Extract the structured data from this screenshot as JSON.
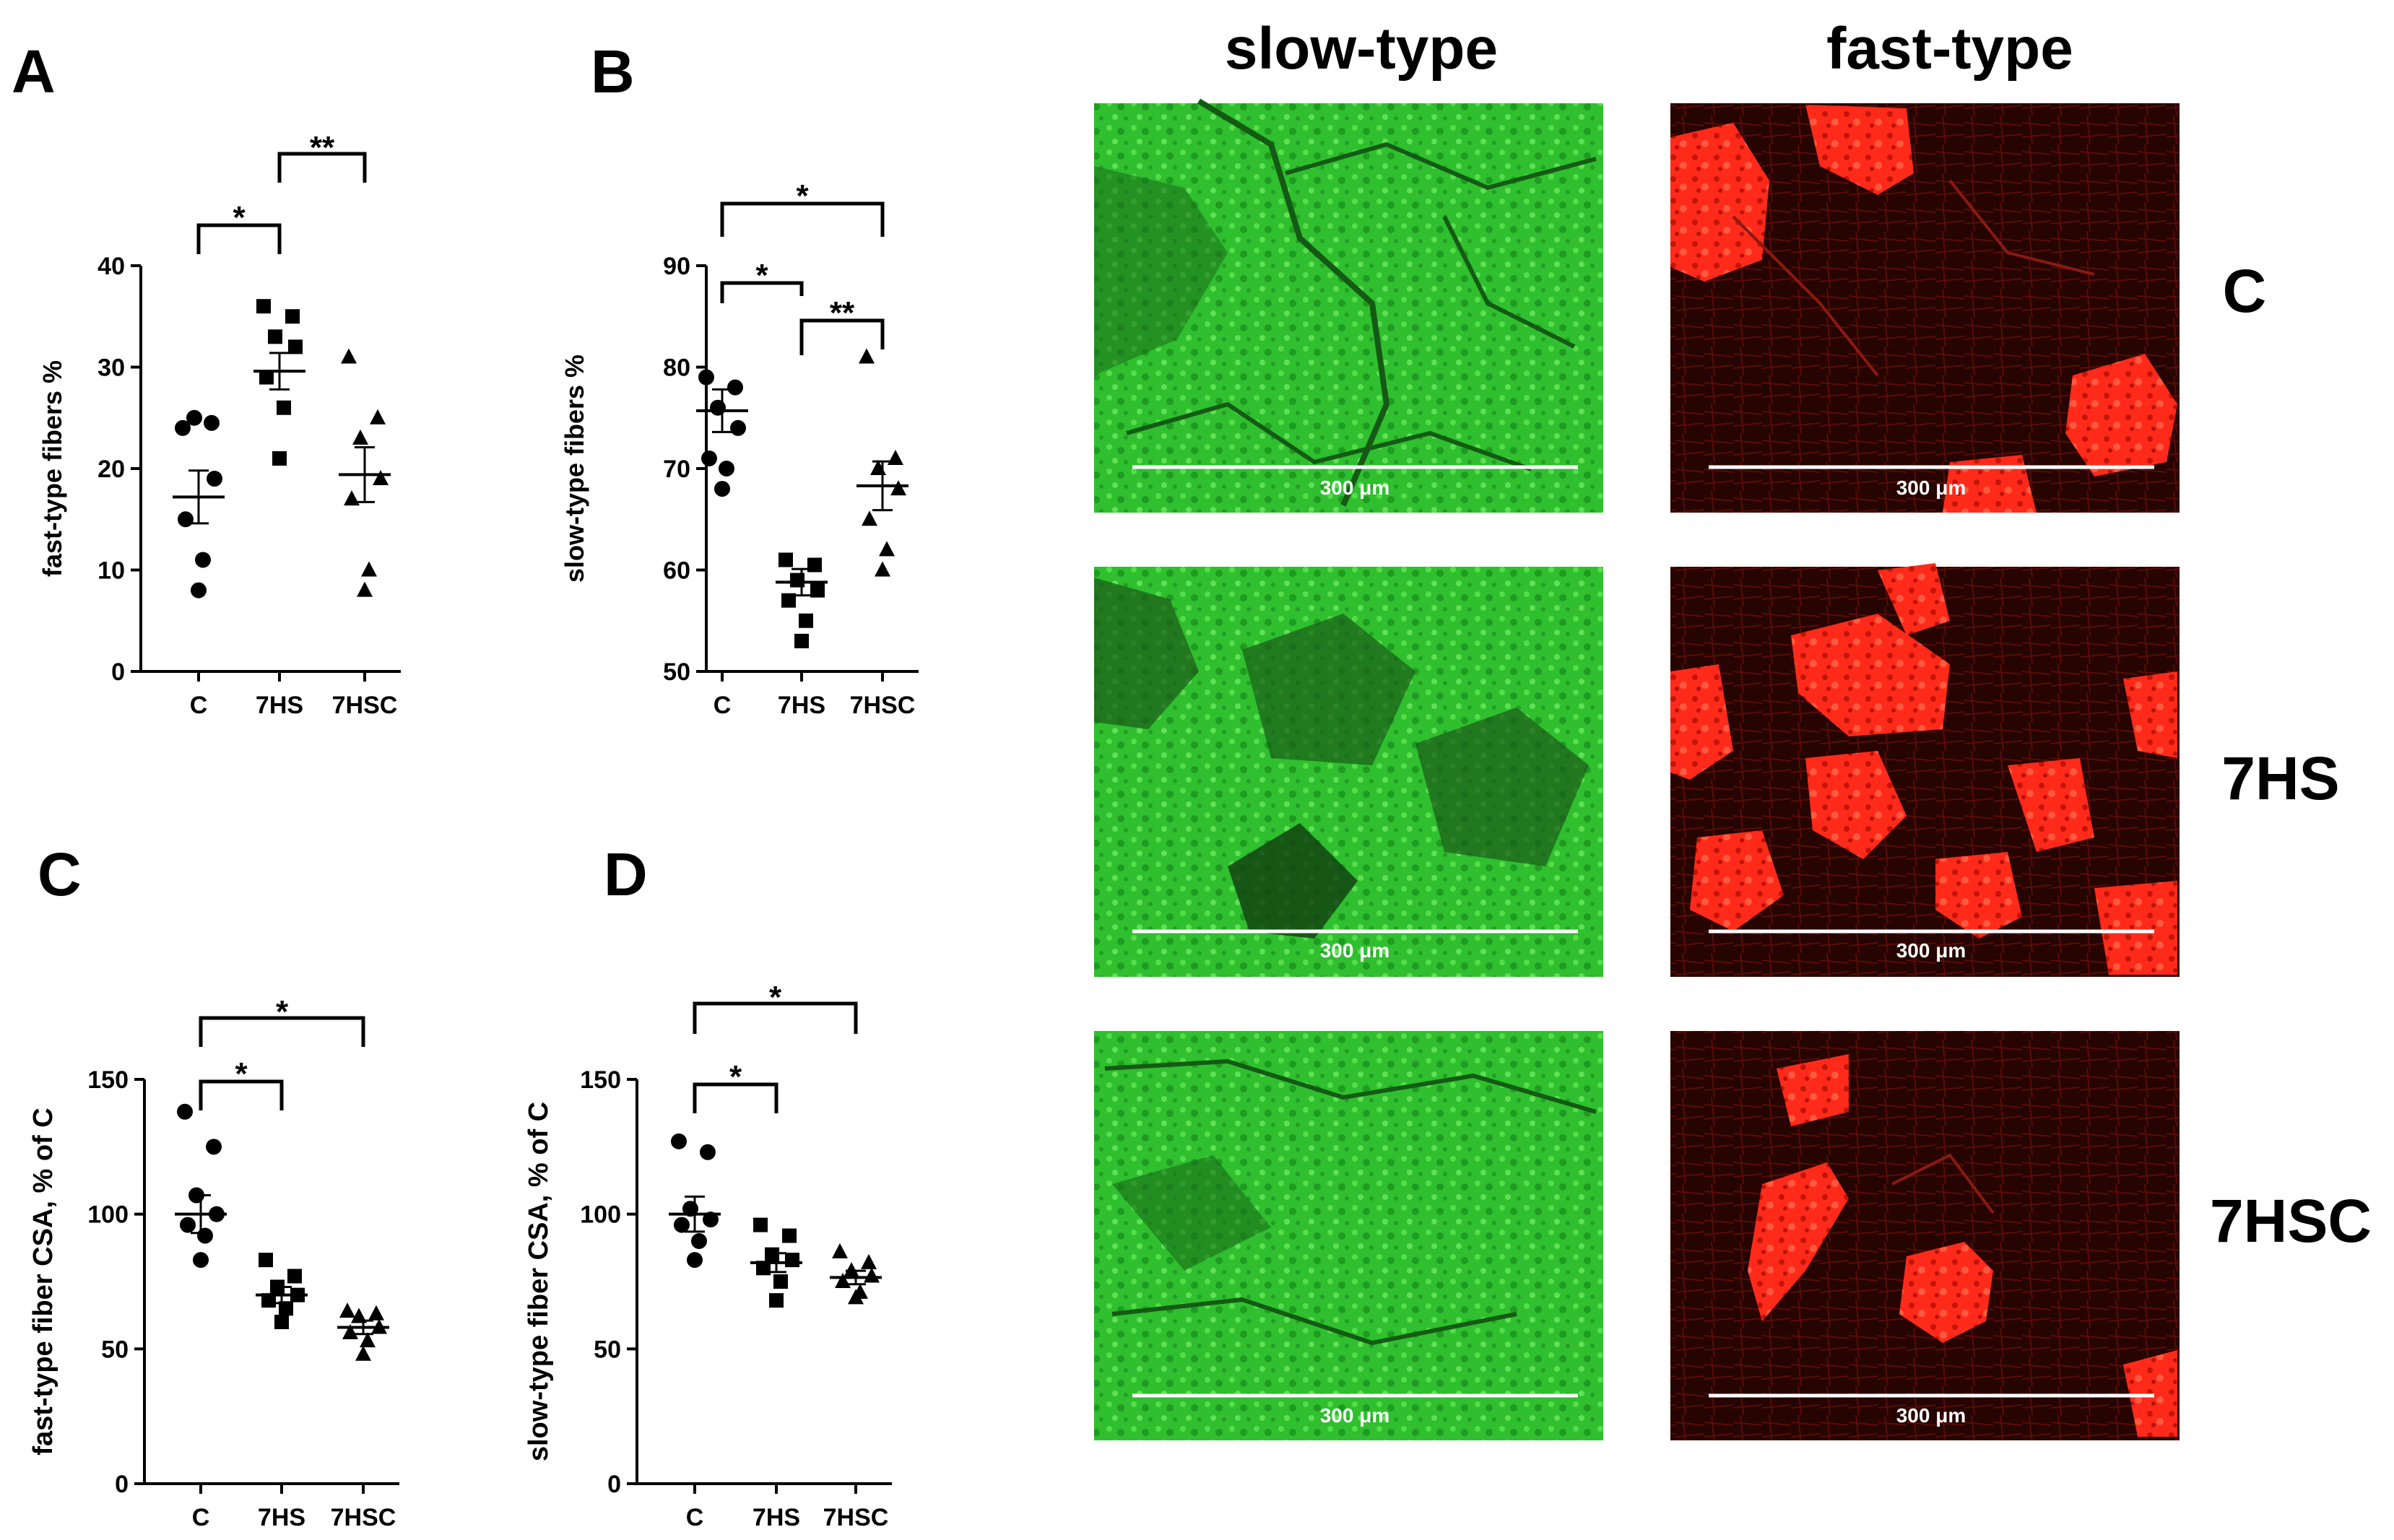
{
  "figure": {
    "column_headers": [
      "slow-type",
      "fast-type"
    ],
    "row_labels": [
      "C",
      "7HS",
      "7HSC"
    ],
    "scale_bar_label": "300 μm",
    "colors": {
      "slow_stain": "#2fc62f",
      "fast_stain": "#ff2a1a",
      "fast_bg": "#2a0503",
      "ink": "#000000"
    }
  },
  "chart_data": [
    {
      "panel": "A",
      "type": "scatter",
      "categories": [
        "C",
        "7HS",
        "7HSC"
      ],
      "ylabel": "fast-type fibers %",
      "xlabel": "",
      "ylim": [
        0,
        40
      ],
      "yticks": [
        0,
        10,
        20,
        30,
        40
      ],
      "series": [
        {
          "category": "C",
          "marker": "circle",
          "values": [
            24,
            24.5,
            25,
            19,
            15,
            11,
            8
          ],
          "mean": 17.2,
          "sem": 2.6
        },
        {
          "category": "7HS",
          "marker": "square",
          "values": [
            36,
            35,
            33,
            32,
            29,
            26,
            21
          ],
          "mean": 29.6,
          "sem": 1.8
        },
        {
          "category": "7HSC",
          "marker": "triangle",
          "values": [
            31,
            25,
            23,
            19,
            17,
            10,
            8
          ],
          "mean": 19.4,
          "sem": 2.7
        }
      ],
      "significance": [
        {
          "from": "C",
          "to": "7HS",
          "label": "*"
        },
        {
          "from": "7HS",
          "to": "7HSC",
          "label": "**"
        }
      ]
    },
    {
      "panel": "B",
      "type": "scatter",
      "categories": [
        "C",
        "7HS",
        "7HSC"
      ],
      "ylabel": "slow-type fibers %",
      "xlabel": "",
      "ylim": [
        50,
        90
      ],
      "yticks": [
        50,
        60,
        70,
        80,
        90
      ],
      "series": [
        {
          "category": "C",
          "marker": "circle",
          "values": [
            79,
            78,
            76,
            74,
            71,
            70,
            68
          ],
          "mean": 75.7,
          "sem": 2.1
        },
        {
          "category": "7HS",
          "marker": "square",
          "values": [
            61,
            60.5,
            59,
            58,
            57,
            55,
            53
          ],
          "mean": 58.8,
          "sem": 1.3
        },
        {
          "category": "7HSC",
          "marker": "triangle",
          "values": [
            81,
            71,
            70,
            68,
            65,
            62,
            60
          ],
          "mean": 68.3,
          "sem": 2.4
        }
      ],
      "significance": [
        {
          "from": "C",
          "to": "7HSC",
          "label": "*"
        },
        {
          "from": "C",
          "to": "7HS",
          "label": "*"
        },
        {
          "from": "7HS",
          "to": "7HSC",
          "label": "**"
        }
      ]
    },
    {
      "panel": "C",
      "type": "scatter",
      "categories": [
        "C",
        "7HS",
        "7HSC"
      ],
      "ylabel": "fast-type fiber CSA, % of C",
      "xlabel": "",
      "ylim": [
        0,
        150
      ],
      "yticks": [
        0,
        50,
        100,
        150
      ],
      "series": [
        {
          "category": "C",
          "marker": "circle",
          "values": [
            138,
            125,
            107,
            100,
            96,
            92,
            83
          ],
          "mean": 100,
          "sem": 7
        },
        {
          "category": "7HS",
          "marker": "square",
          "values": [
            83,
            77,
            73,
            70,
            68,
            65,
            60
          ],
          "mean": 70,
          "sem": 3
        },
        {
          "category": "7HSC",
          "marker": "triangle",
          "values": [
            64,
            63,
            62,
            58,
            56,
            53,
            48
          ],
          "mean": 58,
          "sem": 2.5
        }
      ],
      "significance": [
        {
          "from": "C",
          "to": "7HSC",
          "label": "*"
        },
        {
          "from": "C",
          "to": "7HS",
          "label": "*"
        }
      ]
    },
    {
      "panel": "D",
      "type": "scatter",
      "categories": [
        "C",
        "7HS",
        "7HSC"
      ],
      "ylabel": "slow-type fiber CSA, % of C",
      "xlabel": "",
      "ylim": [
        0,
        150
      ],
      "yticks": [
        0,
        50,
        100,
        150
      ],
      "series": [
        {
          "category": "C",
          "marker": "circle",
          "values": [
            127,
            123,
            102,
            98,
            96,
            90,
            83
          ],
          "mean": 100,
          "sem": 6.5
        },
        {
          "category": "7HS",
          "marker": "square",
          "values": [
            96,
            92,
            85,
            83,
            80,
            75,
            68
          ],
          "mean": 82,
          "sem": 3.5
        },
        {
          "category": "7HSC",
          "marker": "triangle",
          "values": [
            86,
            82,
            79,
            77,
            75,
            71,
            69
          ],
          "mean": 76.5,
          "sem": 2.5
        }
      ],
      "significance": [
        {
          "from": "C",
          "to": "7HSC",
          "label": "*"
        },
        {
          "from": "C",
          "to": "7HS",
          "label": "*"
        }
      ]
    }
  ]
}
